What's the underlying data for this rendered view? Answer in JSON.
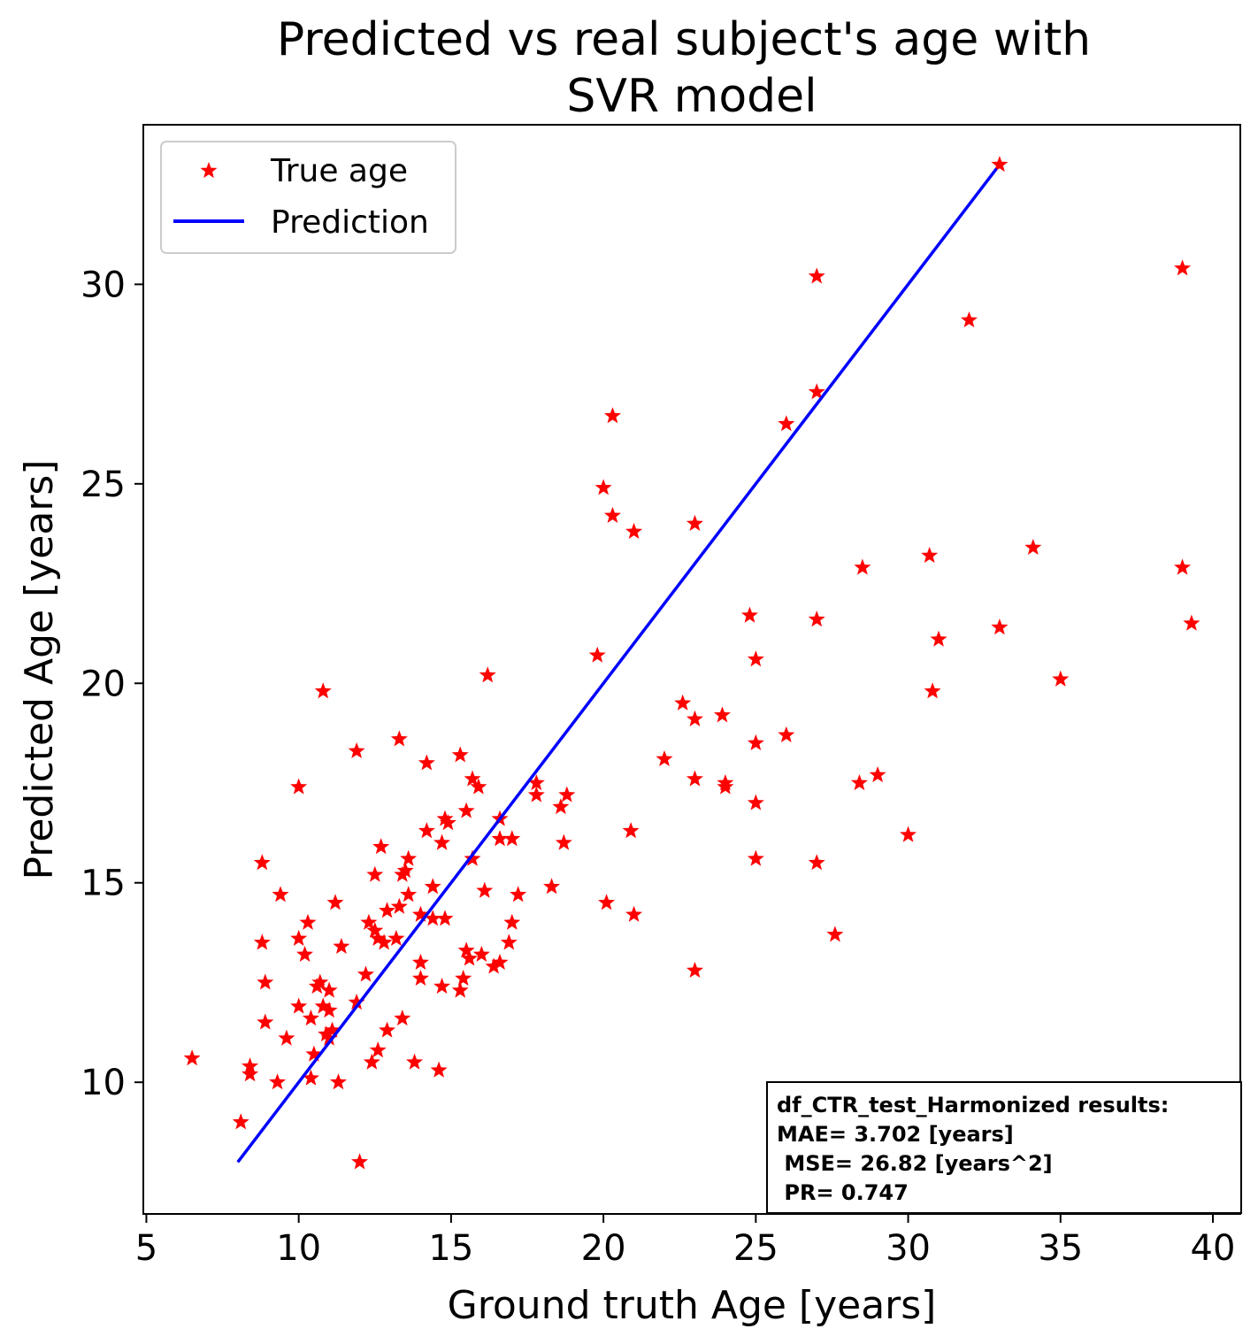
{
  "chart_data": {
    "type": "scatter",
    "title_lines": [
      "Predicted vs real subject's age with",
      "SVR model"
    ],
    "xlabel": "Ground truth Age [years]",
    "ylabel": "Predicted Age [years]",
    "xlim": [
      4.9,
      40.9
    ],
    "ylim": [
      6.7,
      34.0
    ],
    "xticks": [
      5,
      10,
      15,
      20,
      25,
      30,
      35,
      40
    ],
    "yticks": [
      10,
      15,
      20,
      25,
      30
    ],
    "grid": false,
    "legend_placement": "top-left",
    "legend": [
      {
        "label": "True age",
        "marker": "star",
        "color": "#ff0000"
      },
      {
        "label": "Prediction",
        "marker": "line",
        "color": "#0000ff"
      }
    ],
    "series": [
      {
        "name": "True age",
        "type": "scatter",
        "color": "#ff0000",
        "points": [
          [
            6.5,
            10.6
          ],
          [
            8.1,
            9.0
          ],
          [
            8.4,
            10.4
          ],
          [
            8.4,
            10.2
          ],
          [
            8.8,
            15.5
          ],
          [
            8.8,
            13.5
          ],
          [
            8.9,
            12.5
          ],
          [
            8.9,
            11.5
          ],
          [
            9.3,
            10.0
          ],
          [
            9.4,
            14.7
          ],
          [
            9.6,
            11.1
          ],
          [
            10.0,
            17.4
          ],
          [
            10.0,
            13.6
          ],
          [
            10.0,
            11.9
          ],
          [
            10.2,
            13.2
          ],
          [
            10.3,
            14.0
          ],
          [
            10.4,
            11.6
          ],
          [
            10.4,
            10.1
          ],
          [
            10.5,
            10.7
          ],
          [
            10.6,
            12.4
          ],
          [
            10.7,
            12.5
          ],
          [
            10.8,
            11.9
          ],
          [
            10.8,
            19.8
          ],
          [
            10.9,
            11.2
          ],
          [
            11.0,
            12.3
          ],
          [
            11.0,
            11.8
          ],
          [
            11.0,
            11.1
          ],
          [
            11.1,
            11.3
          ],
          [
            11.2,
            14.5
          ],
          [
            11.3,
            10.0
          ],
          [
            11.4,
            13.4
          ],
          [
            11.9,
            12.0
          ],
          [
            11.9,
            18.3
          ],
          [
            12.0,
            8.0
          ],
          [
            12.2,
            12.7
          ],
          [
            12.3,
            14.0
          ],
          [
            12.4,
            10.5
          ],
          [
            12.5,
            13.8
          ],
          [
            12.5,
            15.2
          ],
          [
            12.6,
            10.8
          ],
          [
            12.6,
            13.6
          ],
          [
            12.7,
            15.9
          ],
          [
            12.8,
            13.5
          ],
          [
            12.9,
            11.3
          ],
          [
            12.9,
            14.3
          ],
          [
            13.2,
            13.6
          ],
          [
            13.3,
            14.4
          ],
          [
            13.3,
            18.6
          ],
          [
            13.4,
            11.6
          ],
          [
            13.4,
            15.2
          ],
          [
            13.5,
            15.3
          ],
          [
            13.6,
            14.7
          ],
          [
            13.6,
            15.6
          ],
          [
            13.8,
            10.5
          ],
          [
            14.0,
            14.2
          ],
          [
            14.0,
            13.0
          ],
          [
            14.0,
            12.6
          ],
          [
            14.2,
            16.3
          ],
          [
            14.2,
            18.0
          ],
          [
            14.4,
            14.9
          ],
          [
            14.4,
            14.1
          ],
          [
            14.6,
            10.3
          ],
          [
            14.7,
            16.0
          ],
          [
            14.7,
            12.4
          ],
          [
            14.8,
            14.1
          ],
          [
            14.8,
            16.6
          ],
          [
            14.9,
            16.5
          ],
          [
            15.3,
            18.2
          ],
          [
            15.3,
            12.3
          ],
          [
            15.4,
            12.6
          ],
          [
            15.5,
            13.3
          ],
          [
            15.5,
            16.8
          ],
          [
            15.6,
            13.1
          ],
          [
            15.7,
            15.6
          ],
          [
            15.7,
            17.6
          ],
          [
            15.9,
            17.4
          ],
          [
            16.0,
            13.2
          ],
          [
            16.1,
            14.8
          ],
          [
            16.2,
            20.2
          ],
          [
            16.4,
            12.9
          ],
          [
            16.6,
            16.1
          ],
          [
            16.6,
            16.6
          ],
          [
            16.6,
            13.0
          ],
          [
            16.9,
            13.5
          ],
          [
            17.0,
            14.0
          ],
          [
            17.0,
            16.1
          ],
          [
            17.2,
            14.7
          ],
          [
            17.8,
            17.5
          ],
          [
            17.8,
            17.2
          ],
          [
            18.3,
            14.9
          ],
          [
            18.6,
            16.9
          ],
          [
            18.7,
            16.0
          ],
          [
            18.8,
            17.2
          ],
          [
            19.8,
            20.7
          ],
          [
            20.0,
            24.9
          ],
          [
            20.1,
            14.5
          ],
          [
            20.3,
            26.7
          ],
          [
            20.3,
            24.2
          ],
          [
            20.9,
            16.3
          ],
          [
            21.0,
            23.8
          ],
          [
            21.0,
            14.2
          ],
          [
            22.0,
            18.1
          ],
          [
            22.6,
            19.5
          ],
          [
            23.0,
            19.1
          ],
          [
            23.0,
            17.6
          ],
          [
            23.0,
            24.0
          ],
          [
            23.0,
            12.8
          ],
          [
            23.9,
            19.2
          ],
          [
            24.0,
            17.4
          ],
          [
            24.0,
            17.5
          ],
          [
            24.8,
            21.7
          ],
          [
            25.0,
            20.6
          ],
          [
            25.0,
            18.5
          ],
          [
            25.0,
            17.0
          ],
          [
            25.0,
            15.6
          ],
          [
            26.0,
            26.5
          ],
          [
            26.0,
            18.7
          ],
          [
            27.0,
            27.3
          ],
          [
            27.0,
            30.2
          ],
          [
            27.0,
            21.6
          ],
          [
            27.0,
            15.5
          ],
          [
            27.6,
            13.7
          ],
          [
            28.4,
            17.5
          ],
          [
            28.5,
            22.9
          ],
          [
            29.0,
            17.7
          ],
          [
            30.0,
            16.2
          ],
          [
            30.7,
            23.2
          ],
          [
            30.8,
            19.8
          ],
          [
            31.0,
            21.1
          ],
          [
            32.0,
            29.1
          ],
          [
            33.0,
            33.0
          ],
          [
            33.0,
            21.4
          ],
          [
            34.1,
            23.4
          ],
          [
            35.0,
            20.1
          ],
          [
            39.0,
            30.4
          ],
          [
            39.0,
            22.9
          ],
          [
            39.3,
            21.5
          ]
        ]
      },
      {
        "name": "Prediction",
        "type": "line",
        "color": "#0000ff",
        "points": [
          [
            8.0,
            8.0
          ],
          [
            32.9,
            32.9
          ]
        ]
      }
    ],
    "annotation_lines": [
      "df_CTR_test_Harmonized results:",
      "MAE= 3.702 [years]",
      " MSE= 26.82 [years^2]",
      " PR= 0.747"
    ]
  }
}
